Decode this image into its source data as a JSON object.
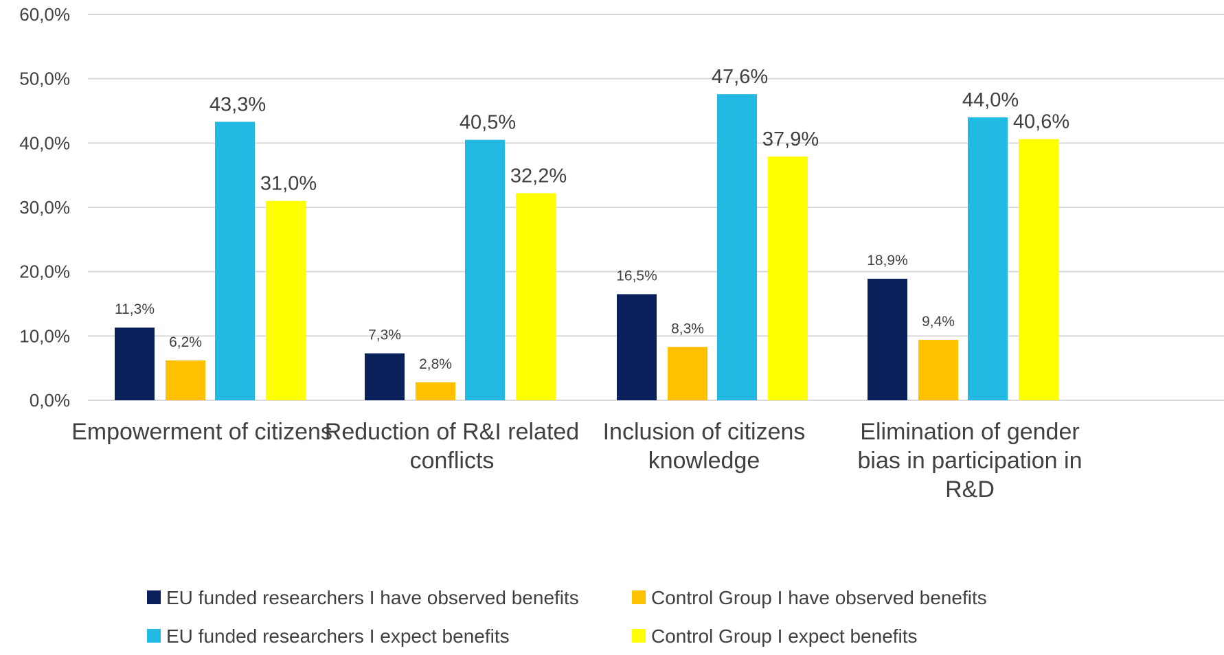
{
  "chart_data": {
    "type": "bar",
    "categories": [
      [
        "Empowerment of citizens"
      ],
      [
        "Reduction of R&I related",
        "conflicts"
      ],
      [
        "Inclusion of citizens",
        "knowledge"
      ],
      [
        "Elimination of gender",
        "bias in participation in",
        "R&D"
      ]
    ],
    "series": [
      {
        "name": "EU funded researchers  I have observed benefits",
        "color": "#0a205a",
        "values": [
          11.3,
          7.3,
          16.5,
          18.9
        ],
        "labels": [
          "11,3%",
          "7,3%",
          "16,5%",
          "18,9%"
        ]
      },
      {
        "name": "Control Group  I have observed benefits",
        "color": "#ffc000",
        "values": [
          6.2,
          2.8,
          8.3,
          9.4
        ],
        "labels": [
          "6,2%",
          "2,8%",
          "8,3%",
          "9,4%"
        ]
      },
      {
        "name": "EU funded researchers  I expect benefits",
        "color": "#22b9e3",
        "values": [
          43.3,
          40.5,
          47.6,
          44.0
        ],
        "labels": [
          "43,3%",
          "40,5%",
          "47,6%",
          "44,0%"
        ]
      },
      {
        "name": "Control Group  I expect benefits",
        "color": "#ffff00",
        "values": [
          31.0,
          32.2,
          37.9,
          40.6
        ],
        "labels": [
          "31,0%",
          "32,2%",
          "37,9%",
          "40,6%"
        ]
      }
    ],
    "ylim": [
      0,
      60
    ],
    "yticks": [
      0,
      10,
      20,
      30,
      40,
      50,
      60
    ],
    "ytick_labels": [
      "0,0%",
      "10,0%",
      "20,0%",
      "30,0%",
      "40,0%",
      "50,0%",
      "60,0%"
    ],
    "grid": true,
    "gridline_color": "#d9d9d9",
    "legend_position": "bottom",
    "title": "",
    "xlabel": "",
    "ylabel": ""
  }
}
